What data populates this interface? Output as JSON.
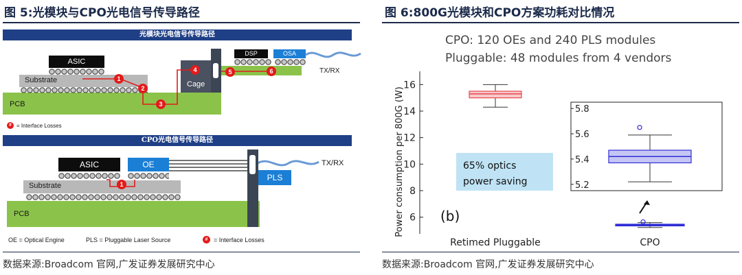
{
  "left": {
    "caption": "图 5:光模块与CPO光电信号传导路径",
    "source": "数据来源:Broadcom 官网,广发证券发展研究中心",
    "pluggable": {
      "banner": "光模块光电信号传导路径",
      "asic": "ASIC",
      "substrate": "Substrate",
      "pcb": "PCB",
      "cage": "Cage",
      "dsp": "DSP",
      "osa": "OSA",
      "txrx": "TX/RX",
      "markers": [
        "1",
        "2",
        "3",
        "4",
        "5",
        "6"
      ],
      "legend_marker": "#",
      "legend_text": "= Interface Losses"
    },
    "cpo": {
      "banner": "CPO光电信号传导路径",
      "asic": "ASIC",
      "oe": "OE",
      "substrate": "Substrate",
      "pcb": "PCB",
      "pls": "PLS",
      "txrx": "TX/RX",
      "marker": "1",
      "legend_oe": "OE = Optical Engine",
      "legend_pls": "PLS = Pluggable Laser Source",
      "legend_marker": "#",
      "legend_losses": "= Interface Losses"
    }
  },
  "right": {
    "caption": "图 6:800G光模块和CPO方案功耗对比情况",
    "source": "数据来源:Broadcom 官网,广发证券发展研究中心",
    "annotation_line1": "CPO: 120 OEs and 240 PLS modules",
    "annotation_line2": "Pluggable: 48 modules from 4 vendors",
    "saving_line1": "65% optics",
    "saving_line2": "power saving",
    "panel_label": "(b)",
    "colors": {
      "pluggable": "#e8474c",
      "cpo": "#2f2fd6",
      "saving_box": "#bfe3f5"
    }
  },
  "chart_data": {
    "type": "boxplot",
    "ylabel": "Power consumption per 800G (W)",
    "xlabel": "",
    "categories": [
      "Retimed Pluggable",
      "CPO"
    ],
    "ylim": [
      5,
      17
    ],
    "yticks": [
      "6",
      "8",
      "10",
      "12",
      "14",
      "16"
    ],
    "boxes": [
      {
        "category": "Retimed Pluggable",
        "min": 14.3,
        "q1": 15.0,
        "median": 15.3,
        "q3": 15.5,
        "max": 16.0
      },
      {
        "category": "CPO",
        "min": 5.22,
        "q1": 5.37,
        "median": 5.42,
        "q3": 5.47,
        "max": 5.59,
        "outliers": [
          5.65
        ]
      }
    ],
    "inset": {
      "category": "CPO",
      "ylim": [
        5.15,
        5.85
      ],
      "yticks": [
        "5.2",
        "5.4",
        "5.6",
        "5.8"
      ]
    }
  }
}
